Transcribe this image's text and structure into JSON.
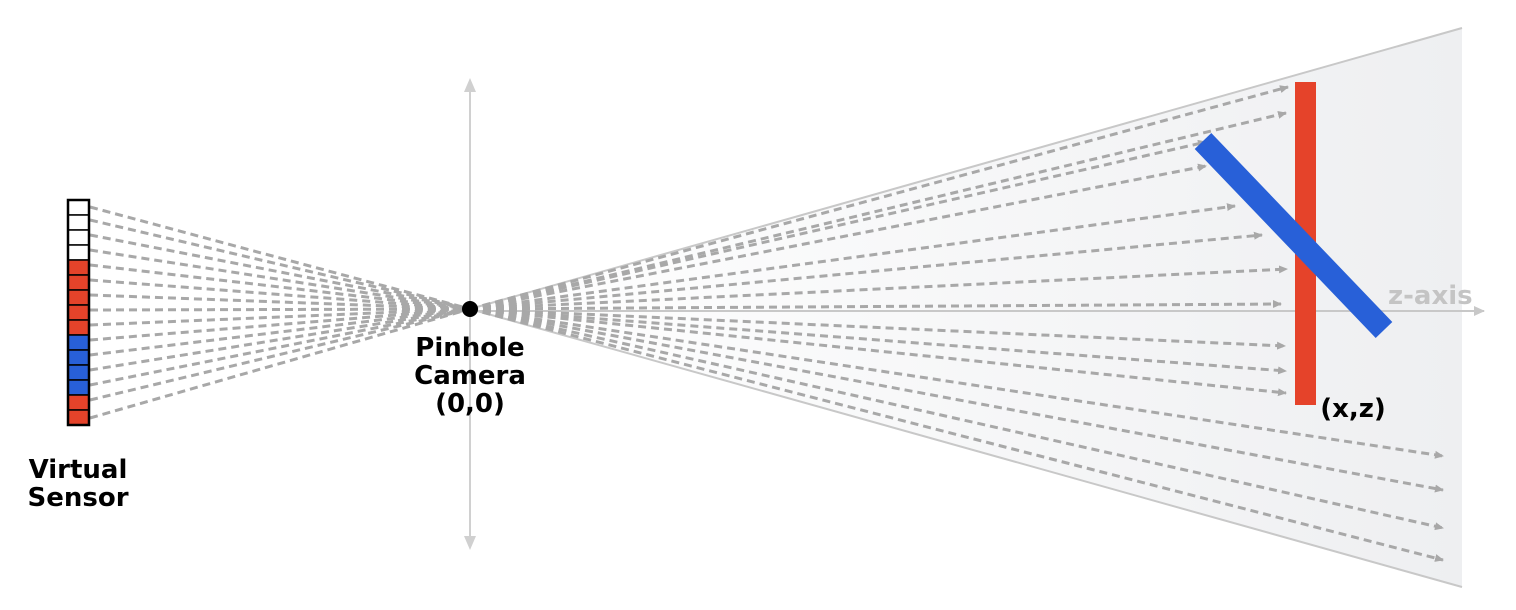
{
  "labels": {
    "sensor_line1": "Virtual",
    "sensor_line2": "Sensor",
    "camera_line1": "Pinhole",
    "camera_line2": "Camera",
    "camera_coord": "(0,0)",
    "surface_point": "(x,z)",
    "axis": "z-axis"
  },
  "sensor": {
    "pixels": [
      "white",
      "white",
      "white",
      "white",
      "red",
      "red",
      "red",
      "red",
      "red",
      "blue",
      "blue",
      "blue",
      "blue",
      "red",
      "red"
    ]
  },
  "colors": {
    "red": "#e5432a",
    "blue": "#2860d8",
    "white": "#ffffff",
    "ray": "#a8a8a8",
    "axis": "#c8c8c8",
    "frustum": "#f2f3f4"
  }
}
